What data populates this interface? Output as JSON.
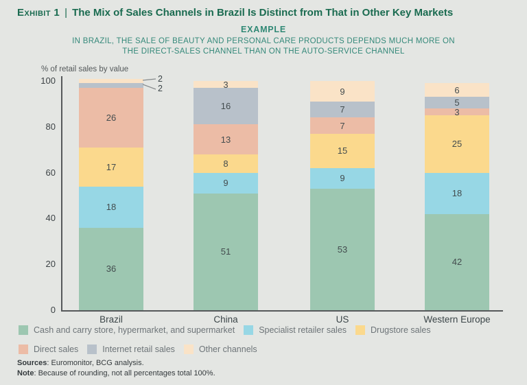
{
  "header": {
    "exhibit_label": "Exhibit 1",
    "separator": "|",
    "title": "The Mix of Sales Channels in Brazil Is Distinct from That in Other Key Markets",
    "example_label": "EXAMPLE",
    "subtitle_line1": "IN BRAZIL, THE SALE OF BEAUTY AND PERSONAL CARE PRODUCTS DEPENDS MUCH MORE ON",
    "subtitle_line2": "THE DIRECT-SALES CHANNEL THAN ON THE AUTO-SERVICE CHANNEL"
  },
  "chart_data": {
    "type": "bar",
    "stacked": true,
    "categories": [
      "Brazil",
      "China",
      "US",
      "Western Europe"
    ],
    "series": [
      {
        "name": "Cash and carry store, hypermarket, and supermarket",
        "color": "#9dc7b1",
        "values": [
          36,
          51,
          53,
          42
        ]
      },
      {
        "name": "Specialist retailer sales",
        "color": "#97d7e5",
        "values": [
          18,
          9,
          9,
          18
        ]
      },
      {
        "name": "Drugstore sales",
        "color": "#fbd98d",
        "values": [
          17,
          8,
          15,
          25
        ]
      },
      {
        "name": "Direct sales",
        "color": "#ecbca6",
        "values": [
          26,
          13,
          7,
          3
        ]
      },
      {
        "name": "Internet retail sales",
        "color": "#b8c1ca",
        "values": [
          2,
          16,
          7,
          5
        ]
      },
      {
        "name": "Other channels",
        "color": "#fae3c7",
        "values": [
          2,
          3,
          9,
          6
        ]
      }
    ],
    "ylabel": "% of retail sales by value",
    "ylim": [
      0,
      100
    ],
    "yticks": [
      0,
      20,
      40,
      60,
      80,
      100
    ],
    "grid": false,
    "legend_position": "bottom",
    "callouts": [
      {
        "category": "Brazil",
        "series": "Other channels",
        "value": 2
      },
      {
        "category": "Brazil",
        "series": "Internet retail sales",
        "value": 2
      }
    ]
  },
  "footer": {
    "sources_label": "Sources",
    "sources_text": ": Euromonitor, BCG analysis.",
    "note_label": "Note",
    "note_text": ": Because of rounding, not all percentages total 100%."
  },
  "colors": {
    "background": "#e4e6e3",
    "title_green": "#1a6b50",
    "subtitle_teal": "#35897a",
    "axis": "#55585a",
    "bar_label_text": "#434c4e",
    "legend_text": "#6d7478",
    "callout_line": "#85898b"
  }
}
